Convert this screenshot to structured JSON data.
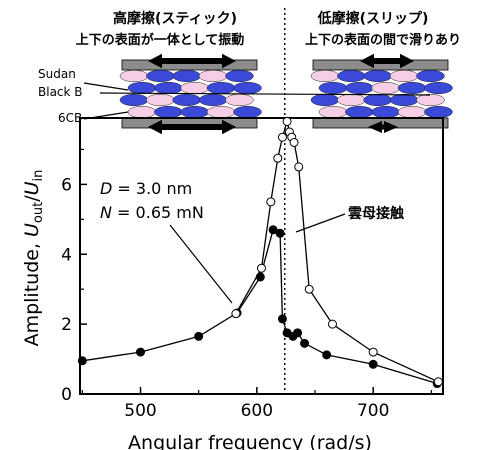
{
  "header": {
    "left_title": "高摩擦(スティック)",
    "left_subtitle": "上下の表面が一体として振動",
    "right_title": "低摩擦(スリップ)",
    "right_subtitle": "上下の表面の間で滑りあり"
  },
  "schematic": {
    "label_dye": "Sudan",
    "label_dye2": "Black B",
    "label_lc": "6CB",
    "colors": {
      "blue": "#3a49d8",
      "pink": "#f6cfe6",
      "plate": "#8c8c8c"
    }
  },
  "chart_data": {
    "type": "line",
    "xlabel": "Angular frequency (rad/s)",
    "ylabel": "Amplitude, U_out/U_in",
    "ylabel_main": "Amplitude, ",
    "ylabel_u1": "U",
    "ylabel_sub1": "out",
    "ylabel_slash": "/",
    "ylabel_u2": "U",
    "ylabel_sub2": "in",
    "xlim": [
      448,
      760
    ],
    "ylim": [
      0,
      7.9
    ],
    "xticks": [
      500,
      600,
      700
    ],
    "yticks": [
      0,
      2,
      4,
      6
    ],
    "annotations": {
      "d_label": "D = 3.0 nm",
      "d_var": "D",
      "d_val": " = 3.0 nm",
      "n_label": "N = 0.65 mN",
      "n_var": "N",
      "n_val": " = 0.65 mN",
      "mica": "雲母接触"
    },
    "series": [
      {
        "style": "filled",
        "color": "#000000",
        "x": [
          450,
          500,
          550,
          583,
          603,
          614,
          620,
          622,
          626,
          631,
          635,
          641,
          660,
          700,
          755
        ],
        "y": [
          0.95,
          1.2,
          1.65,
          2.32,
          3.35,
          4.7,
          4.6,
          2.15,
          1.75,
          1.65,
          1.75,
          1.45,
          1.12,
          0.85,
          0.3
        ]
      },
      {
        "style": "open",
        "color": "#000000",
        "x": [
          582,
          604,
          612,
          618,
          622,
          626,
          628,
          630,
          632,
          636,
          645,
          665,
          700,
          756
        ],
        "y": [
          2.3,
          3.6,
          5.5,
          6.75,
          7.35,
          7.8,
          7.5,
          7.35,
          7.2,
          6.5,
          3.0,
          2.0,
          1.2,
          0.35
        ]
      }
    ],
    "vline_x": 624
  }
}
